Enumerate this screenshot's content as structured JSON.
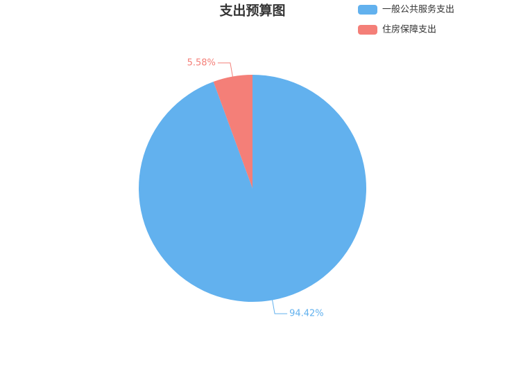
{
  "chart_data": {
    "type": "pie",
    "title": "支出预算图",
    "categories": [
      "一般公共服务支出",
      "住房保障支出"
    ],
    "values": [
      94.42,
      5.58
    ],
    "value_labels": [
      "94.42%",
      "5.58%"
    ],
    "colors": [
      "#62b1ee",
      "#f47f78"
    ],
    "legend": "top-right"
  }
}
